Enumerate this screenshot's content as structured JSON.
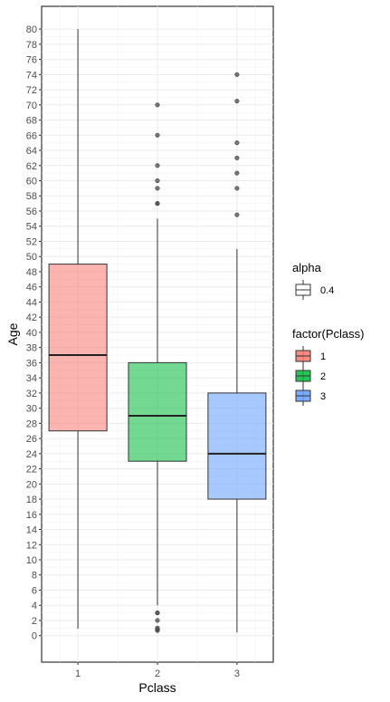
{
  "chart_data": {
    "type": "boxplot",
    "xlabel": "Pclass",
    "ylabel": "Age",
    "categories": [
      "1",
      "2",
      "3"
    ],
    "ylim": [
      -3.5,
      83
    ],
    "y_ticks": [
      0,
      2,
      4,
      6,
      8,
      10,
      12,
      14,
      16,
      18,
      20,
      22,
      24,
      26,
      28,
      30,
      32,
      34,
      36,
      38,
      40,
      42,
      44,
      46,
      48,
      50,
      52,
      54,
      56,
      58,
      60,
      62,
      64,
      66,
      68,
      70,
      72,
      74,
      76,
      78,
      80
    ],
    "grid": true,
    "colors": {
      "1": "#F8766D",
      "2": "#00BA38",
      "3": "#619CFF"
    },
    "boxes": [
      {
        "category": "1",
        "min": 0.92,
        "q1": 27,
        "median": 37,
        "q3": 49,
        "max": 80,
        "outliers": []
      },
      {
        "category": "2",
        "min": 4,
        "q1": 23,
        "median": 29,
        "q3": 36,
        "max": 55,
        "outliers": [
          0.67,
          0.83,
          0.83,
          1,
          2,
          3,
          3,
          57,
          57,
          59,
          60,
          62,
          66,
          70
        ]
      },
      {
        "category": "3",
        "min": 0.42,
        "q1": 18,
        "median": 24,
        "q3": 32,
        "max": 51,
        "outliers": [
          55.5,
          59,
          61,
          63,
          65,
          70.5,
          74
        ]
      }
    ],
    "legend": [
      {
        "title": "alpha",
        "entries": [
          {
            "label": "0.4",
            "fill": "#ffffff"
          }
        ]
      },
      {
        "title": "factor(Pclass)",
        "entries": [
          {
            "label": "1",
            "fill": "#F8766D"
          },
          {
            "label": "2",
            "fill": "#00BA38"
          },
          {
            "label": "3",
            "fill": "#619CFF"
          }
        ]
      }
    ],
    "legend_position": "right"
  }
}
